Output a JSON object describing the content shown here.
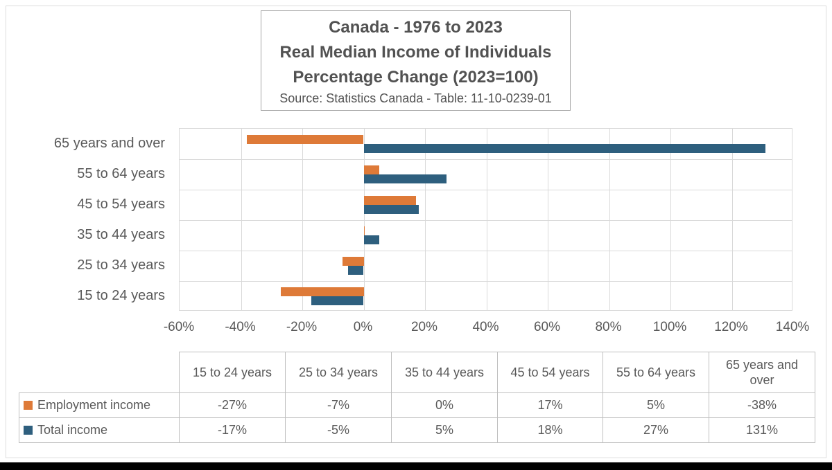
{
  "title": {
    "lines": [
      "Canada - 1976 to 2023",
      "Real Median Income of Individuals",
      "Percentage Change (2023=100)"
    ],
    "source": "Source: Statistics Canada - Table: 11-10-0239-01"
  },
  "colors": {
    "employment_income": "#DE7A38",
    "total_income": "#2E5F7E",
    "gridline": "#D9D9D9",
    "plot_border": "#D9D9D9",
    "table_border": "#BFBFBF",
    "text": "#595959",
    "title_box_border": "#A6A6A6",
    "bottom_bar": "#000000"
  },
  "chart_data": {
    "type": "bar",
    "orientation": "horizontal",
    "categories": [
      "15 to 24 years",
      "25 to 34 years",
      "35 to 44 years",
      "45 to 54 years",
      "55 to 64 years",
      "65 years and over"
    ],
    "category_display_order_top_to_bottom": [
      "65 years and over",
      "55 to 64 years",
      "45 to 54 years",
      "35 to 44 years",
      "25 to 34 years",
      "15 to 24 years"
    ],
    "series": [
      {
        "name": "Employment income",
        "color": "#DE7A38",
        "values": [
          -27,
          -7,
          0,
          17,
          5,
          -38
        ]
      },
      {
        "name": "Total income",
        "color": "#2E5F7E",
        "values": [
          -17,
          -5,
          5,
          18,
          27,
          131
        ]
      }
    ],
    "value_unit": "%",
    "x_axis": {
      "min": -60,
      "max": 140,
      "step": 20,
      "tick_labels": [
        "-60%",
        "-40%",
        "-20%",
        "0%",
        "20%",
        "40%",
        "60%",
        "80%",
        "100%",
        "120%",
        "140%"
      ]
    },
    "grid": true,
    "legend_position": "data-table-left"
  },
  "table": {
    "column_headers": [
      "15 to 24 years",
      "25 to 34 years",
      "35 to 44 years",
      "45 to 54 years",
      "55 to 64 years",
      "65 years and over"
    ],
    "rows": [
      {
        "label": "Employment income",
        "swatch_color": "#DE7A38",
        "values": [
          "-27%",
          "-7%",
          "0%",
          "17%",
          "5%",
          "-38%"
        ]
      },
      {
        "label": "Total income",
        "swatch_color": "#2E5F7E",
        "values": [
          "-17%",
          "-5%",
          "5%",
          "18%",
          "27%",
          "131%"
        ]
      }
    ]
  }
}
